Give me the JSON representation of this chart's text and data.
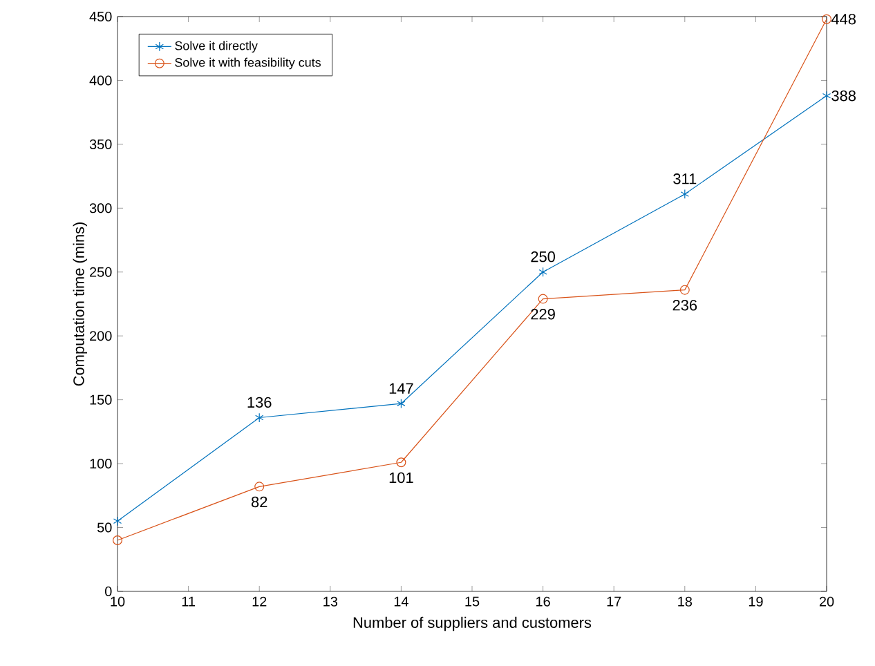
{
  "chart_data": {
    "type": "line",
    "xlabel": "Number of suppliers and customers",
    "ylabel": "Computation time (mins)",
    "x": [
      10,
      12,
      14,
      16,
      18,
      20
    ],
    "series": [
      {
        "name": "Solve it directly",
        "color": "#0072bd",
        "marker": "cross",
        "values": [
          55,
          136,
          147,
          250,
          311,
          388
        ],
        "value_labels": [
          null,
          "136",
          "147",
          "250",
          "311",
          "388"
        ]
      },
      {
        "name": "Solve it with feasibility cuts",
        "color": "#d95319",
        "marker": "circle",
        "values": [
          40,
          82,
          101,
          229,
          236,
          448
        ],
        "value_labels": [
          null,
          "82",
          "101",
          "229",
          "236",
          "448"
        ]
      }
    ],
    "xlim": [
      10,
      20
    ],
    "ylim": [
      0,
      450
    ],
    "xticks": [
      10,
      11,
      12,
      13,
      14,
      15,
      16,
      17,
      18,
      19,
      20
    ],
    "yticks": [
      0,
      50,
      100,
      150,
      200,
      250,
      300,
      350,
      400,
      450
    ],
    "legend": "top left",
    "grid": false,
    "line_style": "solid"
  }
}
